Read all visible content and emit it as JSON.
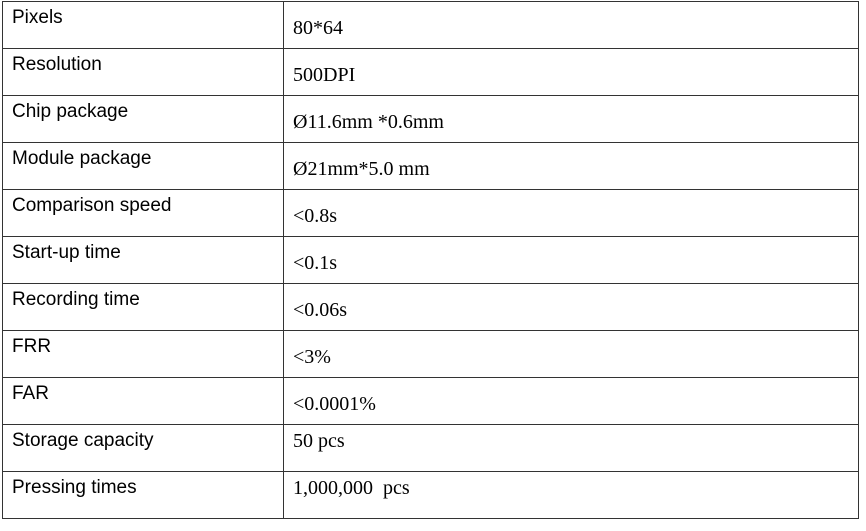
{
  "rows": [
    {
      "label": "Pixels",
      "value": "80*64"
    },
    {
      "label": "Resolution",
      "value": "500DPI"
    },
    {
      "label": "Chip package",
      "value": "Ø11.6mm *0.6mm"
    },
    {
      "label": "Module package",
      "value": "Ø21mm*5.0 mm"
    },
    {
      "label": "Comparison speed",
      "value": "<0.8s"
    },
    {
      "label": "Start-up time",
      "value": "<0.1s"
    },
    {
      "label": "Recording time",
      "value": "<0.06s"
    },
    {
      "label": "FRR",
      "value": "<3%"
    },
    {
      "label": "FAR",
      "value": "<0.0001%"
    },
    {
      "label": "Storage capacity",
      "value": "50 pcs"
    },
    {
      "label": "Pressing times",
      "value": "1,000,000  pcs"
    }
  ]
}
